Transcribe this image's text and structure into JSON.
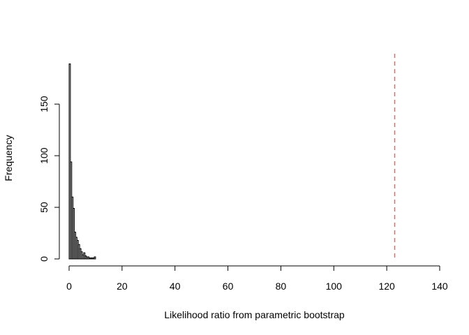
{
  "chart_data": {
    "type": "bar",
    "subtype": "histogram",
    "title": "",
    "xlabel": "Likelihood ratio from parametric bootstrap",
    "ylabel": "Frequency",
    "xlim": [
      0,
      140
    ],
    "ylim": [
      0,
      190
    ],
    "x_ticks": [
      0,
      20,
      40,
      60,
      80,
      100,
      120,
      140
    ],
    "y_ticks": [
      0,
      50,
      100,
      150
    ],
    "bin_width": 0.5,
    "bins": [
      {
        "x0": 0.0,
        "x1": 0.5,
        "count": 189
      },
      {
        "x0": 0.5,
        "x1": 1.0,
        "count": 94
      },
      {
        "x0": 1.0,
        "x1": 1.5,
        "count": 60
      },
      {
        "x0": 1.5,
        "x1": 2.0,
        "count": 49
      },
      {
        "x0": 2.0,
        "x1": 2.5,
        "count": 26
      },
      {
        "x0": 2.5,
        "x1": 3.0,
        "count": 21
      },
      {
        "x0": 3.0,
        "x1": 3.5,
        "count": 18
      },
      {
        "x0": 3.5,
        "x1": 4.0,
        "count": 14
      },
      {
        "x0": 4.0,
        "x1": 4.5,
        "count": 10
      },
      {
        "x0": 4.5,
        "x1": 5.0,
        "count": 7
      },
      {
        "x0": 5.0,
        "x1": 5.5,
        "count": 4
      },
      {
        "x0": 5.5,
        "x1": 6.0,
        "count": 6
      },
      {
        "x0": 6.0,
        "x1": 6.5,
        "count": 3
      },
      {
        "x0": 6.5,
        "x1": 7.0,
        "count": 2
      },
      {
        "x0": 7.0,
        "x1": 7.5,
        "count": 2
      },
      {
        "x0": 7.5,
        "x1": 8.0,
        "count": 1
      },
      {
        "x0": 8.0,
        "x1": 8.5,
        "count": 1
      },
      {
        "x0": 8.5,
        "x1": 9.0,
        "count": 1
      },
      {
        "x0": 9.0,
        "x1": 9.5,
        "count": 1
      },
      {
        "x0": 9.5,
        "x1": 10.0,
        "count": 2
      }
    ],
    "reference_line": {
      "x": 123,
      "color": "#e8665e",
      "style": "dashed"
    },
    "grid": false,
    "legend": "none"
  }
}
